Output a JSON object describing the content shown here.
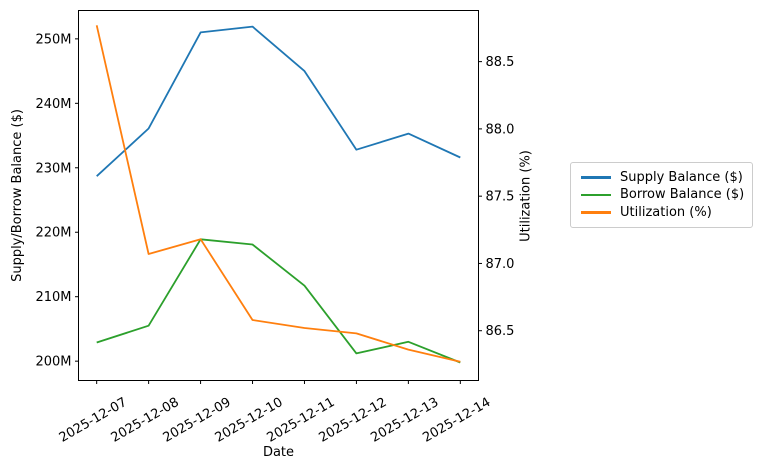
{
  "figure": {
    "background": "#ffffff",
    "text_color": "#000000",
    "axis_color": "#000000",
    "legend_border_color": "#cccccc"
  },
  "chart_data": {
    "type": "line",
    "title": "",
    "xlabel": "Date",
    "ylabel_left": "Supply/Borrow Balance ($)",
    "ylabel_right": "Utilization (%)",
    "x_categories": [
      "2025-12-07",
      "2025-12-08",
      "2025-12-09",
      "2025-12-10",
      "2025-12-11",
      "2025-12-12",
      "2025-12-13",
      "2025-12-14"
    ],
    "x_tick_rotation_deg": 30,
    "grid": false,
    "legend_position": "outside-right",
    "series": [
      {
        "name": "Supply Balance ($)",
        "axis": "left",
        "color": "#1f77b4",
        "unit": "M",
        "values": [
          228.7,
          236.1,
          251.0,
          251.9,
          245.0,
          232.8,
          235.3,
          231.6
        ]
      },
      {
        "name": "Borrow Balance ($)",
        "axis": "left",
        "color": "#2ca02c",
        "unit": "M",
        "values": [
          202.9,
          205.5,
          218.9,
          218.1,
          211.7,
          201.2,
          203.0,
          199.8
        ]
      },
      {
        "name": "Utilization (%)",
        "axis": "right",
        "color": "#ff7f0e",
        "unit": "%",
        "values": [
          88.77,
          87.07,
          87.18,
          86.58,
          86.52,
          86.48,
          86.36,
          86.27
        ]
      }
    ],
    "left_axis": {
      "range": [
        197.0,
        254.4
      ],
      "ticks": [
        200,
        210,
        220,
        230,
        240,
        250
      ],
      "tick_labels": [
        "200M",
        "210M",
        "220M",
        "230M",
        "240M",
        "250M"
      ]
    },
    "right_axis": {
      "range": [
        86.13,
        88.88
      ],
      "ticks": [
        86.5,
        87.0,
        87.5,
        88.0,
        88.5
      ],
      "tick_labels": [
        "86.5",
        "87.0",
        "87.5",
        "88.0",
        "88.5"
      ]
    }
  }
}
